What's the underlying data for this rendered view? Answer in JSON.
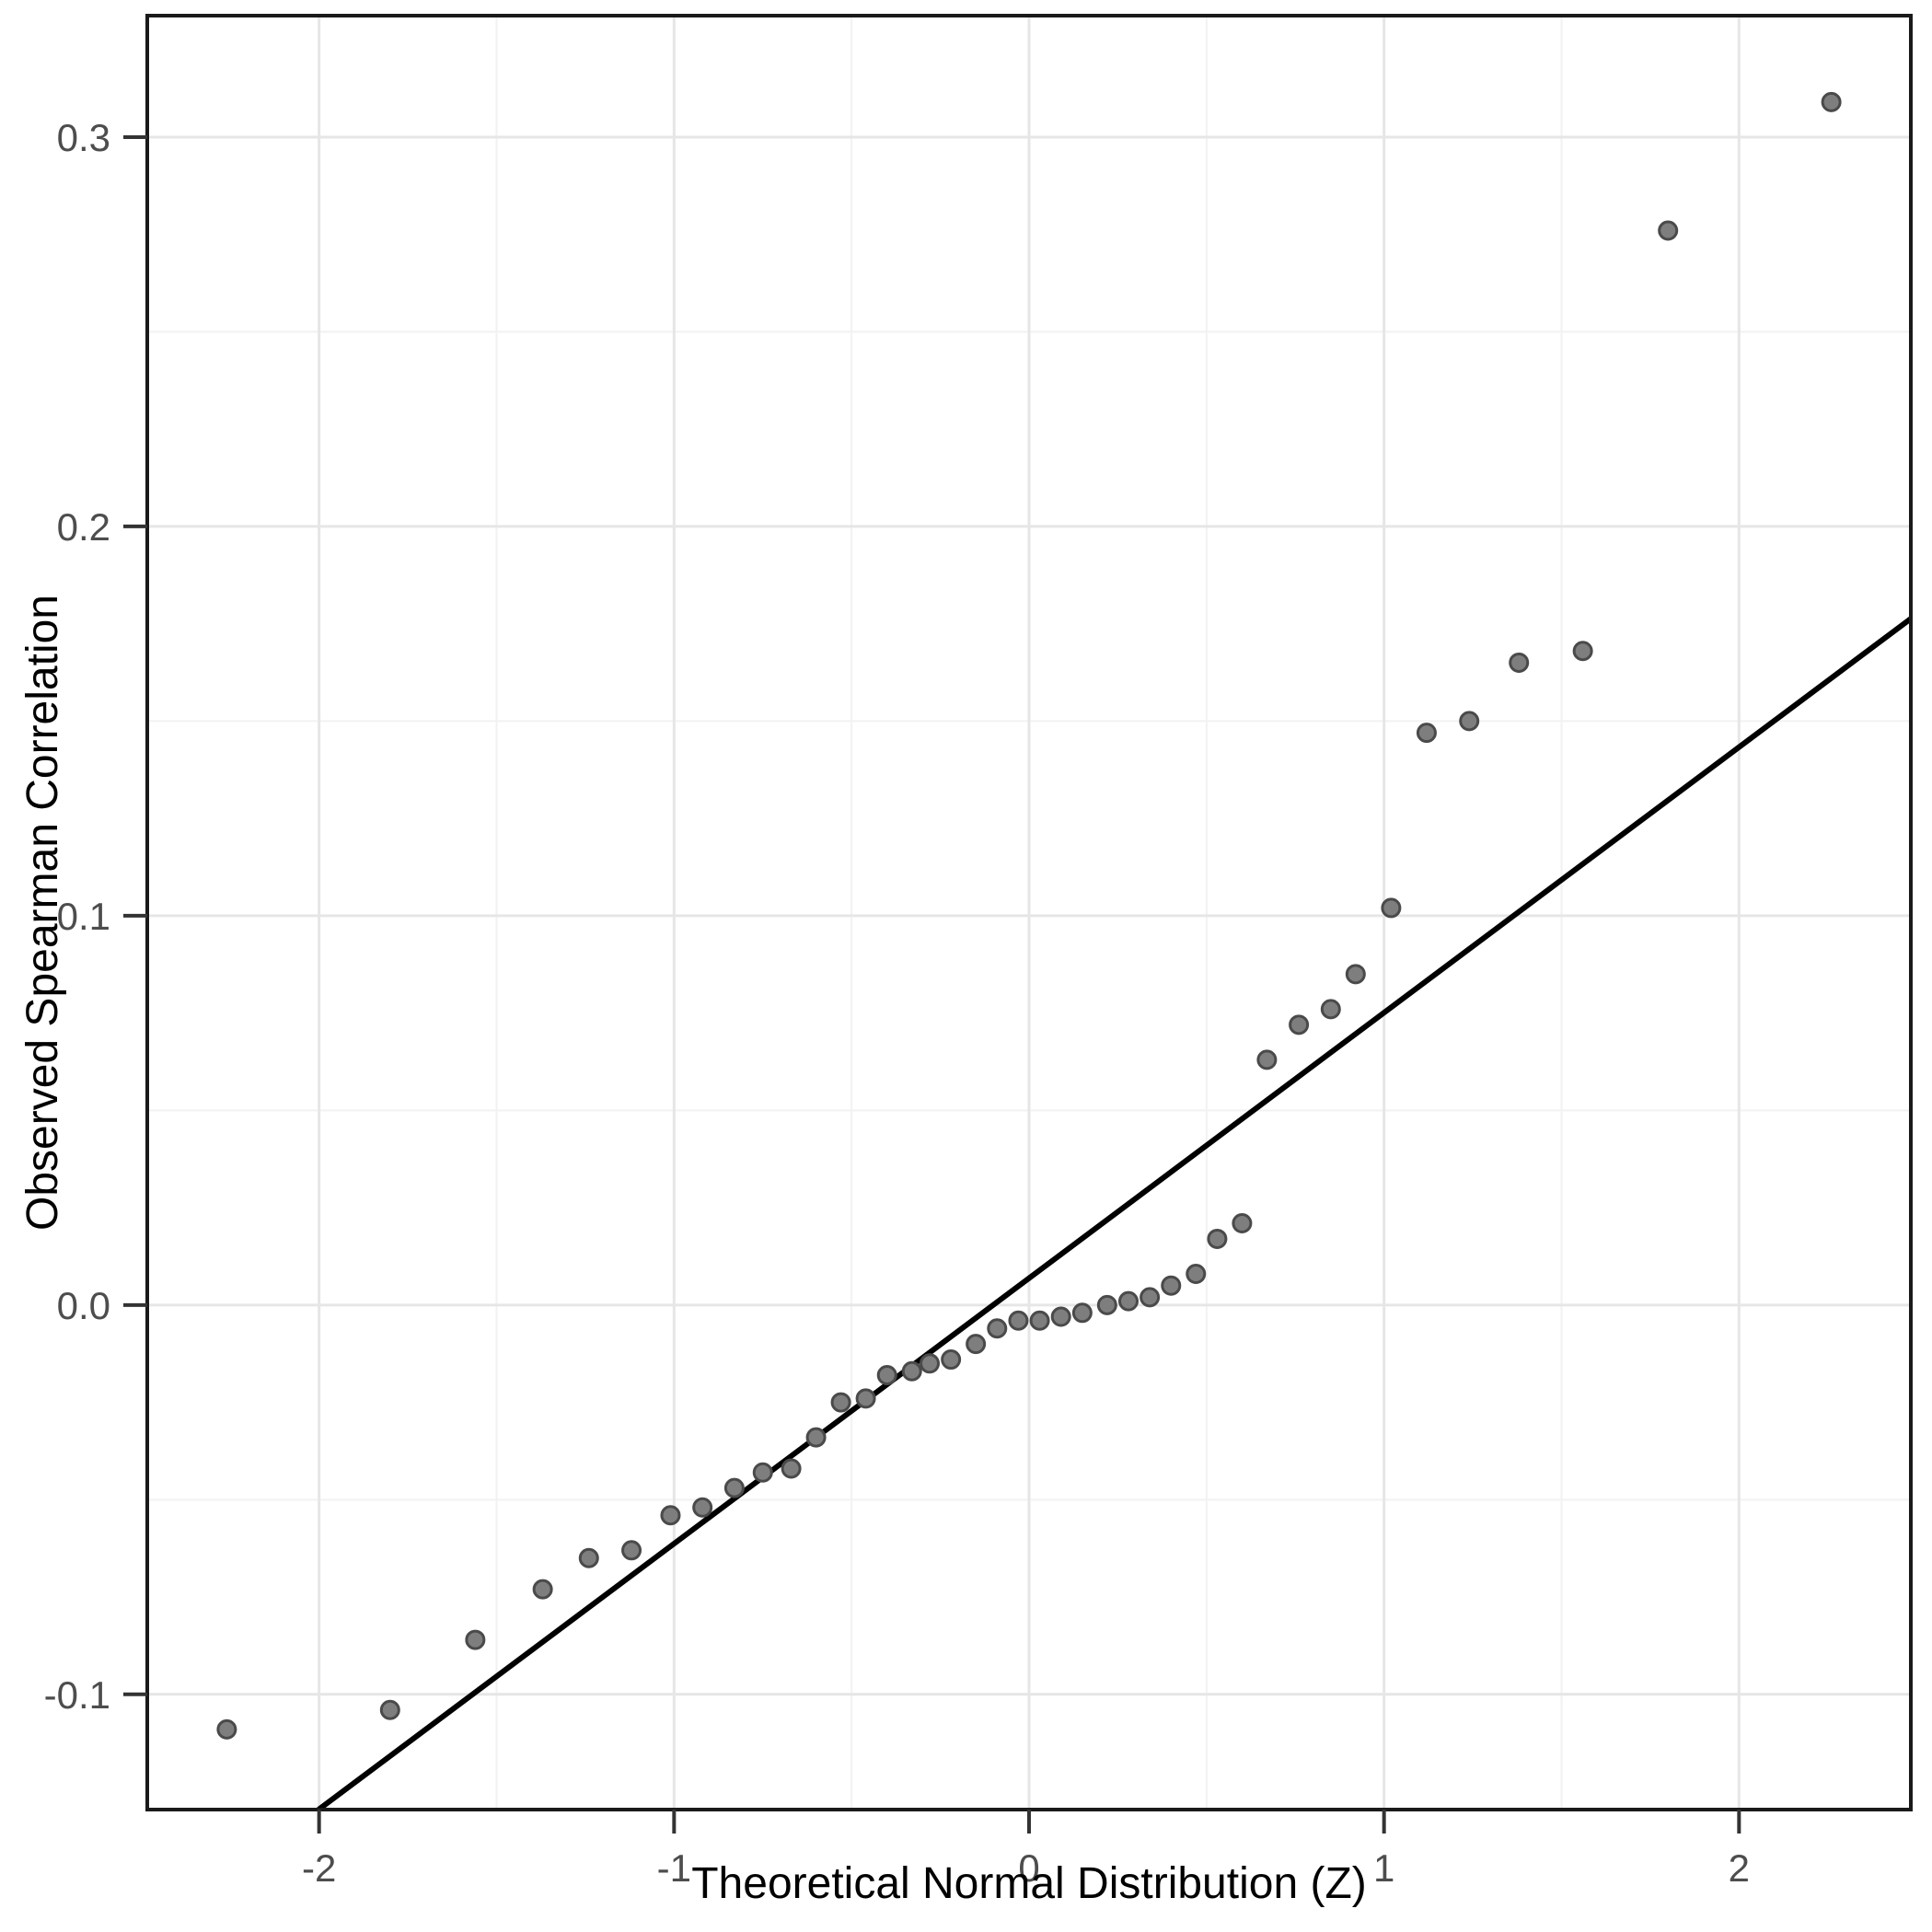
{
  "chart_data": {
    "type": "scatter",
    "title": "",
    "xlabel": "Theoretical Normal Distribution (Z)",
    "ylabel": "Observed Spearman Correlation",
    "xlim": [
      -2.484,
      2.484
    ],
    "ylim": [
      -0.1296,
      0.3312
    ],
    "grid": true,
    "legend": false,
    "x_ticks": {
      "values": [
        -2,
        -1,
        0,
        1,
        2
      ],
      "labels": [
        "-2",
        "-1",
        "0",
        "1",
        "2"
      ]
    },
    "x_minor": [
      -1.5,
      -0.5,
      0.5,
      1.5
    ],
    "y_ticks": {
      "values": [
        0.3,
        0.2,
        0.1,
        0.0,
        -0.1
      ],
      "labels": [
        "0.3",
        "0.2",
        "0.1",
        "0.0",
        "-0.1"
      ]
    },
    "y_minor": [
      0.25,
      0.15,
      0.05,
      -0.05
    ],
    "reference_line": {
      "slope": 0.0682,
      "intercept": 0.0069
    },
    "points": [
      [
        -2.26,
        -0.109
      ],
      [
        -1.8,
        -0.104
      ],
      [
        -1.56,
        -0.086
      ],
      [
        -1.37,
        -0.073
      ],
      [
        -1.24,
        -0.065
      ],
      [
        -1.12,
        -0.063
      ],
      [
        -1.01,
        -0.054
      ],
      [
        -0.92,
        -0.052
      ],
      [
        -0.83,
        -0.047
      ],
      [
        -0.75,
        -0.043
      ],
      [
        -0.67,
        -0.042
      ],
      [
        -0.6,
        -0.034
      ],
      [
        -0.53,
        -0.025
      ],
      [
        -0.46,
        -0.024
      ],
      [
        -0.4,
        -0.018
      ],
      [
        -0.33,
        -0.017
      ],
      [
        -0.28,
        -0.015
      ],
      [
        -0.22,
        -0.014
      ],
      [
        -0.15,
        -0.01
      ],
      [
        -0.09,
        -0.006
      ],
      [
        -0.03,
        -0.004
      ],
      [
        0.03,
        -0.004
      ],
      [
        0.09,
        -0.003
      ],
      [
        0.15,
        -0.002
      ],
      [
        0.22,
        0.0
      ],
      [
        0.28,
        0.001
      ],
      [
        0.34,
        0.002
      ],
      [
        0.4,
        0.005
      ],
      [
        0.47,
        0.008
      ],
      [
        0.53,
        0.017
      ],
      [
        0.6,
        0.021
      ],
      [
        0.67,
        0.063
      ],
      [
        0.76,
        0.072
      ],
      [
        0.85,
        0.076
      ],
      [
        0.92,
        0.085
      ],
      [
        1.02,
        0.102
      ],
      [
        1.12,
        0.147
      ],
      [
        1.24,
        0.15
      ],
      [
        1.38,
        0.165
      ],
      [
        1.56,
        0.168
      ],
      [
        1.8,
        0.276
      ],
      [
        2.26,
        0.309
      ]
    ],
    "colors": {
      "point_fill": "#7e7e7e",
      "point_stroke": "#4a4a4a",
      "reference_line": "#000000",
      "grid_major": "#e6e6e6",
      "grid_minor": "#f2f2f2",
      "panel_border": "#1a1a1a",
      "tick_mark": "#333333",
      "tick_label": "#4d4d4d",
      "axis_title": "#000000",
      "panel_background": "#ffffff"
    }
  }
}
